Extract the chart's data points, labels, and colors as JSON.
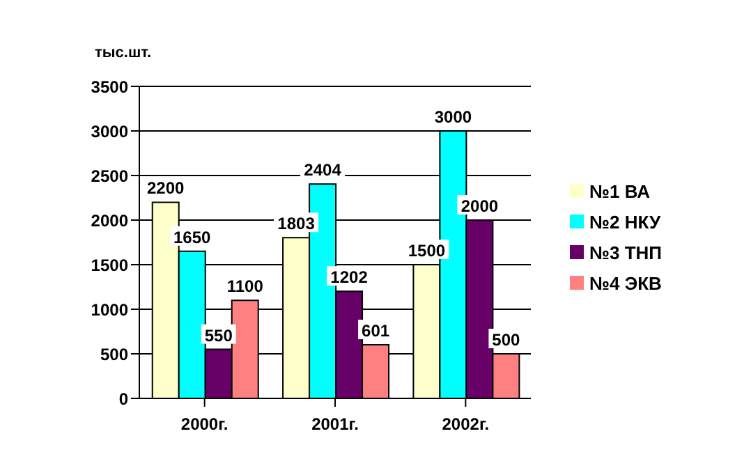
{
  "chart_data": {
    "type": "bar",
    "ylabel": "тыс.шт.",
    "categories": [
      "2000г.",
      "2001г.",
      "2002г."
    ],
    "series": [
      {
        "name": "№1 ВА",
        "color": "#ffffcc",
        "values": [
          2200,
          1803,
          1500
        ]
      },
      {
        "name": "№2 НКУ",
        "color": "#00ffff",
        "values": [
          1650,
          2404,
          3000
        ]
      },
      {
        "name": "№3 ТНП",
        "color": "#660066",
        "values": [
          550,
          1202,
          2000
        ]
      },
      {
        "name": "№4 ЭКВ",
        "color": "#ff8080",
        "values": [
          1100,
          601,
          500
        ]
      }
    ],
    "ylim": [
      0,
      3500
    ],
    "yticks": [
      0,
      500,
      1000,
      1500,
      2000,
      2500,
      3000,
      3500
    ],
    "grid": "y",
    "legend": "right",
    "data_labels": true
  }
}
